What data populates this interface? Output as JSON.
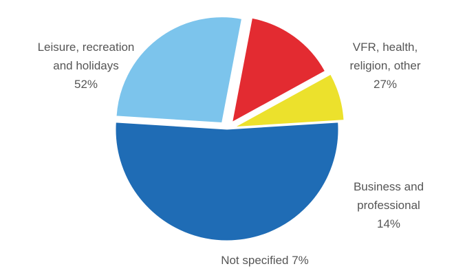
{
  "chart_data": {
    "type": "pie",
    "title": "",
    "slices": [
      {
        "label_lines": [
          "Leisure, recreation",
          "and holidays"
        ],
        "percent_label": "52%",
        "value": 52,
        "color": "#1f6cb5"
      },
      {
        "label_lines": [
          "VFR, health,",
          "religion, other"
        ],
        "percent_label": "27%",
        "value": 27,
        "color": "#7cc4ec"
      },
      {
        "label_lines": [
          "Business and",
          "professional"
        ],
        "percent_label": "14%",
        "value": 14,
        "color": "#e32b31"
      },
      {
        "label_lines": [
          "Not specified"
        ],
        "percent_label": "7%",
        "value": 7,
        "color": "#ece12c"
      }
    ]
  }
}
